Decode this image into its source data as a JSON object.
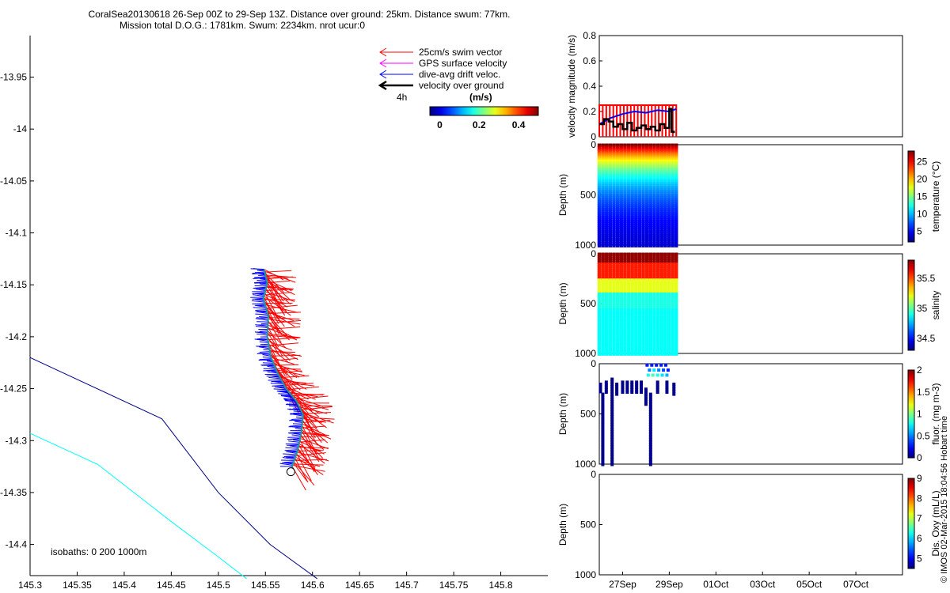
{
  "title_line1": "CoralSea20130618 26-Sep 00Z to 29-Sep 13Z. Distance over ground: 25km. Distance swum: 77km.",
  "title_line2": "Mission total D.O.G.: 1781km. Swum: 2234km. nrot ucur:0",
  "chart_data": [
    {
      "type": "map",
      "name": "glider-track-map",
      "xlim": [
        145.3,
        145.85
      ],
      "ylim": [
        -14.43,
        -13.91
      ],
      "xticks": [
        "145.3",
        "145.35",
        "145.4",
        "145.45",
        "145.5",
        "145.55",
        "145.6",
        "145.65",
        "145.7",
        "145.75",
        "145.8"
      ],
      "xtick_values": [
        145.3,
        145.35,
        145.4,
        145.45,
        145.5,
        145.55,
        145.6,
        145.65,
        145.7,
        145.75,
        145.8
      ],
      "yticks": [
        "-13.95",
        "-14",
        "-14.05",
        "-14.1",
        "-14.15",
        "-14.2",
        "-14.25",
        "-14.3",
        "-14.35",
        "-14.4"
      ],
      "ytick_values": [
        -13.95,
        -14.0,
        -14.05,
        -14.1,
        -14.15,
        -14.2,
        -14.25,
        -14.3,
        -14.35,
        -14.4
      ],
      "track": [
        [
          145.5485,
          -14.135
        ],
        [
          145.552,
          -14.148
        ],
        [
          145.548,
          -14.163
        ],
        [
          145.553,
          -14.18
        ],
        [
          145.552,
          -14.2
        ],
        [
          145.556,
          -14.22
        ],
        [
          145.563,
          -14.235
        ],
        [
          145.572,
          -14.25
        ],
        [
          145.583,
          -14.262
        ],
        [
          145.59,
          -14.275
        ],
        [
          145.588,
          -14.293
        ],
        [
          145.584,
          -14.31
        ],
        [
          145.578,
          -14.326
        ]
      ],
      "start_marker": [
        145.577,
        -14.33
      ],
      "isobath_200": [
        [
          145.3,
          -14.22
        ],
        [
          145.44,
          -14.279
        ],
        [
          145.5,
          -14.35
        ],
        [
          145.555,
          -14.4
        ],
        [
          145.605,
          -14.433
        ]
      ],
      "isobath_1000": [
        [
          145.3,
          -14.293
        ],
        [
          145.372,
          -14.323
        ],
        [
          145.45,
          -14.378
        ],
        [
          145.5,
          -14.412
        ],
        [
          145.53,
          -14.433
        ]
      ],
      "legend": [
        {
          "label": "25cm/s swim vector",
          "color": "#ff0000"
        },
        {
          "label": "GPS surface velocity",
          "color": "#ff00ff"
        },
        {
          "label": "dive-avg drift veloc.",
          "color": "#0000ff"
        },
        {
          "label": "velocity over ground",
          "color": "#000000"
        }
      ],
      "legend_scale_label": "4h",
      "colorbar_title": "(m/s)",
      "colorbar_ticks": [
        "0",
        "0.2",
        "0.4"
      ],
      "colorbar_tick_values": [
        0,
        0.2,
        0.4
      ],
      "colorbar_range": [
        -0.05,
        0.5
      ],
      "isobaths_label": "isobaths: 0   200   1000m",
      "colors": {
        "swim": "#ff0000",
        "drift": "#0000ff",
        "isobath_200": "#00008b",
        "isobath_1000": "#00ffff",
        "track": "#1a9a9a"
      }
    },
    {
      "type": "line",
      "name": "velocity-magnitude-panel",
      "ylabel": "velocity magnitude (m/s)",
      "ylim": [
        0,
        0.8
      ],
      "yticks": [
        "0",
        "0.2",
        "0.4",
        "0.6",
        "0.8"
      ],
      "ytick_values": [
        0,
        0.2,
        0.4,
        0.6,
        0.8
      ],
      "xlim_days": [
        0,
        13
      ],
      "series": [
        {
          "name": "swim",
          "color": "#ff0000",
          "values": [
            0.25
          ]
        },
        {
          "name": "drift",
          "color": "#0000ff",
          "x": [
            0.0,
            0.5,
            1.0,
            1.5,
            2.0,
            2.5,
            3.0,
            3.3
          ],
          "values": [
            0.1,
            0.15,
            0.18,
            0.2,
            0.19,
            0.21,
            0.2,
            0.22
          ]
        },
        {
          "name": "over ground",
          "color": "#000000",
          "x": [
            0.0,
            0.2,
            0.4,
            0.6,
            0.8,
            1.0,
            1.2,
            1.4,
            1.6,
            1.8,
            2.0,
            2.2,
            2.4,
            2.6,
            2.8,
            3.0,
            3.1,
            3.2
          ],
          "values": [
            0.1,
            0.14,
            0.12,
            0.08,
            0.1,
            0.06,
            0.11,
            0.05,
            0.07,
            0.09,
            0.06,
            0.08,
            0.05,
            0.1,
            0.07,
            0.22,
            0.04,
            0.03
          ]
        }
      ]
    },
    {
      "type": "scatter",
      "name": "temperature-panel",
      "ylabel": "Depth (m)",
      "colorbar_label": "temperature (°C)",
      "depth_ticks": [
        "0",
        "500",
        "1000"
      ],
      "colorbar_ticks": [
        "5",
        "10",
        "15",
        "20",
        "25"
      ],
      "colorbar_tick_values": [
        5,
        10,
        15,
        20,
        25
      ],
      "color_range": [
        2,
        28
      ],
      "surface_value": 28,
      "deep_value": 3,
      "profile_x_days": [
        0.0,
        3.3
      ],
      "profile_count": 22,
      "max_depth": 1000
    },
    {
      "type": "scatter",
      "name": "salinity-panel",
      "ylabel": "Depth (m)",
      "colorbar_label": "salinity",
      "depth_ticks": [
        "0",
        "500",
        "1000"
      ],
      "colorbar_ticks": [
        "34.5",
        "35",
        "35.5"
      ],
      "colorbar_tick_values": [
        34.5,
        35.0,
        35.5
      ],
      "color_range": [
        34.3,
        35.8
      ],
      "profile_x_days": [
        0.0,
        3.3
      ],
      "profile_count": 22,
      "max_depth": 1000
    },
    {
      "type": "scatter",
      "name": "fluorescence-panel",
      "ylabel": "Depth (m)",
      "colorbar_label": "fluor. (mg m-3)",
      "depth_ticks": [
        "0",
        "500",
        "1000"
      ],
      "colorbar_ticks": [
        "0",
        "0.5",
        "1",
        "1.5",
        "2"
      ],
      "colorbar_tick_values": [
        0,
        0.5,
        1,
        1.5,
        2
      ],
      "color_range": [
        0,
        2
      ],
      "columns": [
        {
          "x": 0.05,
          "top": 200,
          "bottom": 280
        },
        {
          "x": 0.15,
          "top": 300,
          "bottom": 1000
        },
        {
          "x": 0.3,
          "top": 180,
          "bottom": 300
        },
        {
          "x": 0.55,
          "top": 150,
          "bottom": 1000
        },
        {
          "x": 0.75,
          "top": 200,
          "bottom": 300
        },
        {
          "x": 1.0,
          "top": 180,
          "bottom": 300
        },
        {
          "x": 1.2,
          "top": 180,
          "bottom": 300
        },
        {
          "x": 1.4,
          "top": 180,
          "bottom": 300
        },
        {
          "x": 1.6,
          "top": 180,
          "bottom": 300
        },
        {
          "x": 1.8,
          "top": 180,
          "bottom": 300
        },
        {
          "x": 2.0,
          "top": 250,
          "bottom": 400
        },
        {
          "x": 2.2,
          "top": 300,
          "bottom": 1000
        },
        {
          "x": 2.5,
          "top": 180,
          "bottom": 300
        },
        {
          "x": 2.9,
          "top": 180,
          "bottom": 300
        },
        {
          "x": 3.2,
          "top": 200,
          "bottom": 300
        }
      ],
      "surface_cluster": [
        {
          "x": 2.05,
          "y": 10,
          "v": 0.1
        },
        {
          "x": 2.25,
          "y": 10,
          "v": 0.1
        },
        {
          "x": 2.45,
          "y": 10,
          "v": 0.1
        },
        {
          "x": 2.65,
          "y": 10,
          "v": 0.1
        },
        {
          "x": 2.85,
          "y": 10,
          "v": 0.1
        },
        {
          "x": 2.15,
          "y": 60,
          "v": 0.3
        },
        {
          "x": 2.35,
          "y": 60,
          "v": 0.5
        },
        {
          "x": 2.55,
          "y": 60,
          "v": 0.3
        },
        {
          "x": 2.75,
          "y": 60,
          "v": 0.2
        },
        {
          "x": 2.95,
          "y": 60,
          "v": 0.1
        },
        {
          "x": 2.1,
          "y": 110,
          "v": 0.6
        },
        {
          "x": 2.3,
          "y": 110,
          "v": 0.7
        },
        {
          "x": 2.5,
          "y": 110,
          "v": 0.6
        },
        {
          "x": 2.7,
          "y": 110,
          "v": 0.5
        },
        {
          "x": 2.9,
          "y": 110,
          "v": 0.4
        }
      ],
      "max_depth": 1000
    },
    {
      "type": "scatter",
      "name": "oxygen-panel",
      "ylabel": "Depth (m)",
      "colorbar_label": "Dis. Oxy (mL/L)",
      "depth_ticks": [
        "0",
        "500",
        "1000"
      ],
      "colorbar_ticks": [
        "5",
        "6",
        "7",
        "8",
        "9"
      ],
      "colorbar_tick_values": [
        5,
        6,
        7,
        8,
        9
      ],
      "color_range": [
        4.5,
        9
      ],
      "x_date_ticks": [
        "27Sep",
        "29Sep",
        "01Oct",
        "03Oct",
        "05Oct",
        "07Oct"
      ],
      "x_date_tick_days": [
        1,
        3,
        5,
        7,
        9,
        11
      ],
      "max_depth": 1000
    }
  ],
  "credit": "© IMOS 02-Mar-2015 18:04:56 Hobart time"
}
